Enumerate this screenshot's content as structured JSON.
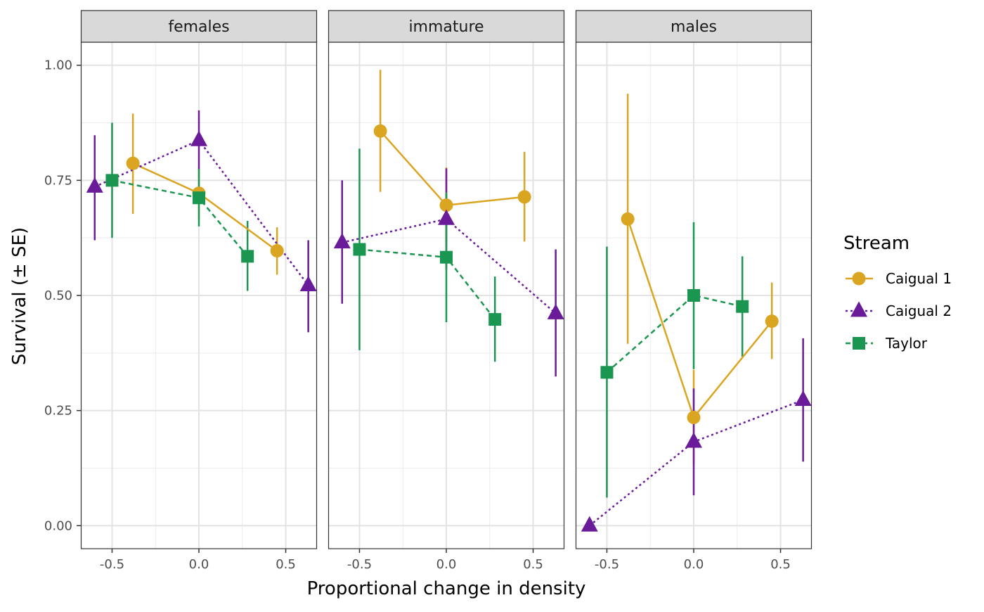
{
  "chart_data": {
    "type": "line",
    "xlabel": "Proportional change in density",
    "ylabel": "Survival (± SE)",
    "xlim": [
      -0.68,
      0.68
    ],
    "ylim": [
      -0.05,
      1.05
    ],
    "x_ticks": [
      -0.5,
      0.0,
      0.5
    ],
    "x_tick_labels": [
      "-0.5",
      "0.0",
      "0.5"
    ],
    "y_ticks": [
      0,
      0.25,
      0.5,
      0.75,
      1.0
    ],
    "y_tick_labels": [
      "0.00",
      "0.25",
      "0.50",
      "0.75",
      "1.00"
    ],
    "grid": true,
    "legend": {
      "title": "Stream",
      "position": "right"
    },
    "series": [
      {
        "name": "Caigual 1",
        "color": "#DAA520",
        "shape": "circle",
        "linestyle": "solid"
      },
      {
        "name": "Caigual 2",
        "color": "#6A1B9A",
        "shape": "triangle",
        "linestyle": "dotted"
      },
      {
        "name": "Taylor",
        "color": "#1B9650",
        "shape": "square",
        "linestyle": "dashed"
      }
    ],
    "panels": [
      {
        "label": "females",
        "data": {
          "Caigual 1": [
            {
              "x": -0.38,
              "y": 0.787,
              "lo": 0.677,
              "hi": 0.895
            },
            {
              "x": 0.0,
              "y": 0.722,
              "lo": 0.665,
              "hi": 0.778
            },
            {
              "x": 0.45,
              "y": 0.597,
              "lo": 0.545,
              "hi": 0.648
            }
          ],
          "Caigual 2": [
            {
              "x": -0.6,
              "y": 0.736,
              "lo": 0.62,
              "hi": 0.848
            },
            {
              "x": 0.0,
              "y": 0.837,
              "lo": 0.773,
              "hi": 0.902
            },
            {
              "x": 0.63,
              "y": 0.522,
              "lo": 0.42,
              "hi": 0.62
            }
          ],
          "Taylor": [
            {
              "x": -0.5,
              "y": 0.75,
              "lo": 0.625,
              "hi": 0.875
            },
            {
              "x": 0.0,
              "y": 0.712,
              "lo": 0.65,
              "hi": 0.775
            },
            {
              "x": 0.28,
              "y": 0.585,
              "lo": 0.51,
              "hi": 0.662
            }
          ]
        }
      },
      {
        "label": "immature",
        "data": {
          "Caigual 1": [
            {
              "x": -0.38,
              "y": 0.857,
              "lo": 0.725,
              "hi": 0.99
            },
            {
              "x": 0.0,
              "y": 0.696,
              "lo": 0.615,
              "hi": 0.778
            },
            {
              "x": 0.45,
              "y": 0.714,
              "lo": 0.617,
              "hi": 0.812
            }
          ],
          "Caigual 2": [
            {
              "x": -0.6,
              "y": 0.615,
              "lo": 0.482,
              "hi": 0.75
            },
            {
              "x": 0.0,
              "y": 0.666,
              "lo": 0.557,
              "hi": 0.776
            },
            {
              "x": 0.63,
              "y": 0.461,
              "lo": 0.324,
              "hi": 0.6
            }
          ],
          "Taylor": [
            {
              "x": -0.5,
              "y": 0.6,
              "lo": 0.381,
              "hi": 0.819
            },
            {
              "x": 0.0,
              "y": 0.583,
              "lo": 0.442,
              "hi": 0.724
            },
            {
              "x": 0.28,
              "y": 0.448,
              "lo": 0.356,
              "hi": 0.541
            }
          ]
        }
      },
      {
        "label": "males",
        "data": {
          "Caigual 1": [
            {
              "x": -0.38,
              "y": 0.666,
              "lo": 0.395,
              "hi": 0.938
            },
            {
              "x": 0.0,
              "y": 0.235,
              "lo": 0.133,
              "hi": 0.338
            },
            {
              "x": 0.45,
              "y": 0.444,
              "lo": 0.362,
              "hi": 0.528
            }
          ],
          "Caigual 2": [
            {
              "x": -0.6,
              "y": 0.0,
              "lo": 0.0,
              "hi": 0.0
            },
            {
              "x": 0.0,
              "y": 0.182,
              "lo": 0.066,
              "hi": 0.298
            },
            {
              "x": 0.63,
              "y": 0.273,
              "lo": 0.139,
              "hi": 0.407
            }
          ],
          "Taylor": [
            {
              "x": -0.5,
              "y": 0.333,
              "lo": 0.061,
              "hi": 0.606
            },
            {
              "x": 0.0,
              "y": 0.5,
              "lo": 0.34,
              "hi": 0.659
            },
            {
              "x": 0.28,
              "y": 0.476,
              "lo": 0.367,
              "hi": 0.585
            }
          ]
        }
      }
    ]
  }
}
